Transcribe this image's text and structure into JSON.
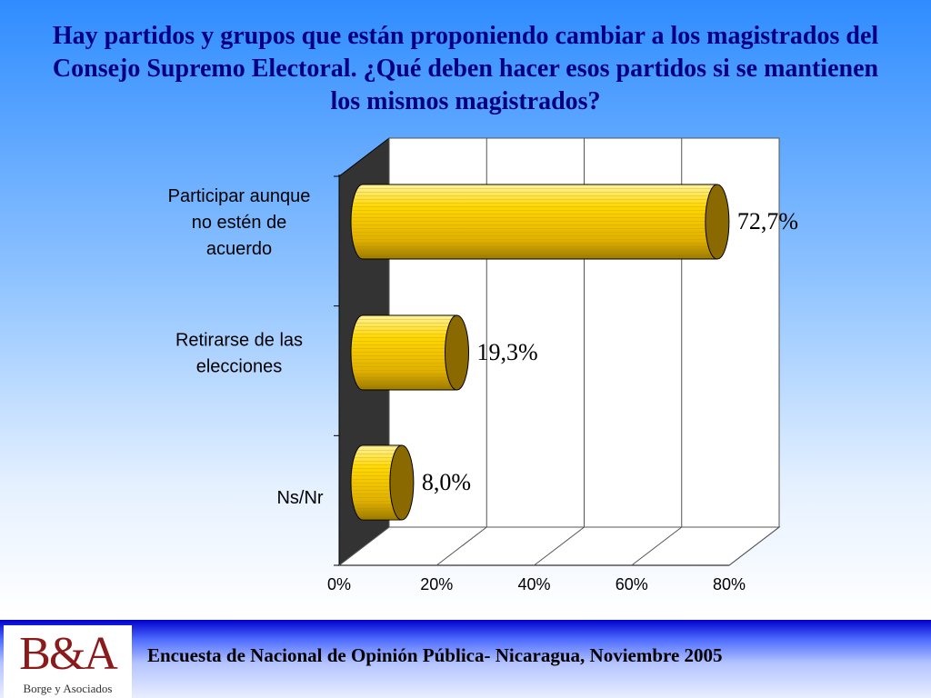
{
  "chart_data": {
    "type": "bar",
    "orientation": "horizontal",
    "title": "Hay partidos y grupos que están proponiendo cambiar a los magistrados del Consejo Supremo Electoral. ¿Qué deben hacer esos partidos si se mantienen los mismos magistrados?",
    "categories": [
      [
        "Participar aunque",
        "no estén de",
        "acuerdo"
      ],
      [
        "Retirarse de las",
        "elecciones"
      ],
      [
        "Ns/Nr"
      ]
    ],
    "values": [
      72.7,
      19.3,
      8.0
    ],
    "data_labels": [
      "72,7%",
      "19,3%",
      "8,0%"
    ],
    "xlim": [
      0,
      80
    ],
    "ticks": [
      0,
      20,
      40,
      60,
      80
    ],
    "tick_labels": [
      "0%",
      "20%",
      "40%",
      "60%",
      "80%"
    ],
    "grid": true,
    "bar_color": "#ffd700",
    "bar_end_color": "#8a6a00",
    "wall_color": "#333333"
  },
  "footer": {
    "logo_text": "B&A",
    "logo_subtitle": "Borge y Asociados",
    "text": "Encuesta de Nacional de Opinión Pública- Nicaragua, Noviembre 2005"
  }
}
